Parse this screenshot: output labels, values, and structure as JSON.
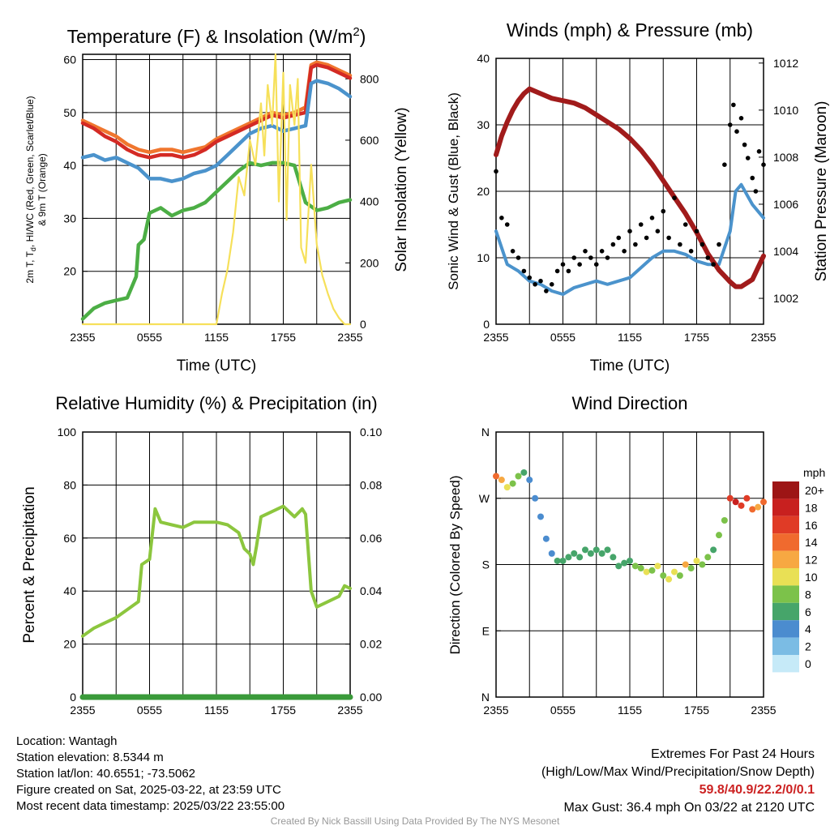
{
  "colors": {
    "red": "#d42a24",
    "orange": "#f0762e",
    "blue": "#4b93cc",
    "green": "#4cae45",
    "yellow": "#f6e05a",
    "black": "#000000",
    "maroon": "#a11b1b",
    "rh": "#8cc63e",
    "precip": "#3a9a3a"
  },
  "chart_data": [
    {
      "name": "temperature",
      "type": "line",
      "title_main": "Temperature (F) & Insolation (W/m",
      "title_sup": "2",
      "title_end": ")",
      "xlabel": "Time (UTC)",
      "ylabel_line1": "2m T, T",
      "ylabel_sub": "d",
      "ylabel_line1_end": ", HI/WC (Red, Green, Scarlet/Blue)",
      "ylabel_line2": "& 9m T (Orange)",
      "ylabel_right": "Solar Insolation (Yellow)",
      "x_ticks": [
        "2355",
        "0555",
        "1155",
        "1755",
        "2355"
      ],
      "x_range": [
        0,
        24
      ],
      "ylim": [
        10,
        61
      ],
      "y_ticks": [
        20,
        30,
        40,
        50,
        60
      ],
      "y2lim": [
        0,
        880
      ],
      "y2_ticks": [
        0,
        200,
        400,
        600,
        800
      ],
      "series": [
        {
          "key": "orange",
          "color_key": "orange",
          "x": [
            0,
            1,
            2,
            3,
            4,
            5,
            6,
            7,
            8,
            9,
            10,
            11,
            12,
            13,
            14,
            15,
            16,
            17,
            18,
            19,
            20,
            20.5,
            21,
            22,
            23,
            24
          ],
          "y": [
            48.5,
            47.5,
            46.5,
            45.5,
            44,
            43,
            42.5,
            43,
            43,
            42.5,
            43,
            43.5,
            45,
            46,
            47,
            48,
            49,
            50,
            49.5,
            50,
            51,
            59,
            59.5,
            59,
            58,
            57
          ]
        },
        {
          "key": "red",
          "color_key": "red",
          "x": [
            0,
            1,
            2,
            3,
            4,
            5,
            6,
            7,
            8,
            9,
            10,
            11,
            12,
            13,
            14,
            15,
            16,
            17,
            18,
            19,
            20,
            20.5,
            21,
            22,
            23,
            24
          ],
          "y": [
            48,
            47,
            45.5,
            44.5,
            43,
            42,
            41.5,
            42,
            42,
            41.5,
            42,
            43,
            44.5,
            45.5,
            46.5,
            47.5,
            48.5,
            49.5,
            49,
            49.5,
            50,
            58.5,
            59,
            58.5,
            57.5,
            56.5
          ]
        },
        {
          "key": "blue",
          "color_key": "blue",
          "x": [
            0,
            1,
            2,
            3,
            4,
            5,
            6,
            7,
            8,
            9,
            10,
            11,
            12,
            13,
            14,
            15,
            16,
            17,
            18,
            19,
            20,
            20.5,
            21,
            22,
            23,
            24
          ],
          "y": [
            41.5,
            42,
            41,
            41.5,
            40.5,
            39.5,
            37.5,
            37.5,
            37,
            37.5,
            38.5,
            39,
            40,
            42,
            44,
            46,
            47,
            47.5,
            46.5,
            47,
            47.5,
            55.5,
            56,
            55.5,
            54.5,
            53
          ]
        },
        {
          "key": "green",
          "color_key": "green",
          "x": [
            0,
            1,
            2,
            3,
            4,
            4.8,
            5,
            5.5,
            6,
            7,
            8,
            9,
            10,
            11,
            12,
            13,
            14,
            15,
            16,
            17,
            18,
            19,
            20,
            21,
            22,
            23,
            24
          ],
          "y": [
            11,
            13,
            14,
            14.5,
            15,
            19,
            25,
            26,
            31,
            32,
            30.5,
            31.5,
            32,
            33,
            35,
            37,
            39,
            40.5,
            40,
            40.5,
            40.5,
            40,
            33,
            31.5,
            32,
            33,
            33.5
          ]
        },
        {
          "key": "yellow",
          "color_key": "yellow",
          "axis": "y2",
          "x": [
            0,
            1,
            2,
            3,
            4,
            5,
            6,
            7,
            8,
            9,
            10,
            11,
            12,
            12.5,
            13,
            13.5,
            14,
            14.5,
            15,
            15.5,
            16,
            16.3,
            16.6,
            17,
            17.3,
            17.6,
            18,
            18.3,
            18.6,
            19,
            19.3,
            19.6,
            20,
            20.5,
            21,
            21.5,
            22,
            22.5,
            23,
            23.5,
            24
          ],
          "y": [
            0,
            0,
            0,
            0,
            0,
            0,
            0,
            0,
            0,
            0,
            0,
            0,
            0,
            100,
            180,
            300,
            480,
            420,
            600,
            520,
            720,
            550,
            780,
            650,
            880,
            400,
            820,
            340,
            780,
            650,
            800,
            250,
            200,
            520,
            260,
            160,
            100,
            50,
            20,
            0,
            0
          ]
        }
      ]
    },
    {
      "name": "winds",
      "type": "line",
      "title": "Winds (mph) & Pressure (mb)",
      "xlabel": "Time (UTC)",
      "ylabel": "Sonic Wind & Gust (Blue, Black)",
      "ylabel_right": "Station Pressure (Maroon)",
      "x_ticks": [
        "2355",
        "0555",
        "1155",
        "1755",
        "2355"
      ],
      "x_range": [
        0,
        24
      ],
      "ylim": [
        0,
        40
      ],
      "y_ticks": [
        0,
        10,
        20,
        30,
        40
      ],
      "y2lim": [
        1000.9,
        1012.2
      ],
      "y2_ticks": [
        1002,
        1004,
        1006,
        1008,
        1010,
        1012
      ],
      "wind": {
        "color_key": "blue",
        "x": [
          0,
          1,
          2,
          3,
          4,
          5,
          6,
          7,
          8,
          9,
          10,
          11,
          12,
          13,
          14,
          15,
          16,
          17,
          18,
          19,
          20,
          21,
          21.5,
          22,
          23,
          24
        ],
        "y": [
          14,
          9,
          8,
          6.5,
          6,
          5,
          4.5,
          5.5,
          6,
          6.5,
          6,
          6.5,
          7,
          8.5,
          10,
          11,
          11,
          10.5,
          9.5,
          9,
          9,
          14,
          20,
          21,
          18,
          16
        ]
      },
      "pressure": {
        "color_key": "maroon",
        "x": [
          0,
          0.5,
          1,
          1.5,
          2,
          2.5,
          3,
          4,
          5,
          6,
          7,
          8,
          9,
          10,
          11,
          12,
          13,
          14,
          15,
          16,
          17,
          18,
          19,
          20,
          21,
          21.5,
          22,
          23,
          24
        ],
        "y": [
          1008.1,
          1008.9,
          1009.5,
          1010,
          1010.4,
          1010.7,
          1010.9,
          1010.7,
          1010.5,
          1010.4,
          1010.3,
          1010.1,
          1009.8,
          1009.5,
          1009.2,
          1008.8,
          1008.3,
          1007.7,
          1007,
          1006.3,
          1005.6,
          1004.8,
          1003.9,
          1003.2,
          1002.7,
          1002.5,
          1002.5,
          1002.8,
          1003.8
        ]
      },
      "gusts": {
        "color_key": "black",
        "x": [
          0,
          0.5,
          1,
          1.5,
          2,
          2.5,
          3,
          3.5,
          4,
          4.5,
          5,
          5.5,
          6,
          6.5,
          7,
          7.5,
          8,
          8.5,
          9,
          9.5,
          10,
          10.5,
          11,
          11.5,
          12,
          12.5,
          13,
          13.5,
          14,
          14.5,
          15,
          15.5,
          16,
          16.5,
          17,
          17.5,
          18,
          18.5,
          19,
          19.5,
          20,
          20.5,
          21,
          21.3,
          21.6,
          22,
          22.3,
          22.6,
          23,
          23.3,
          23.6,
          24
        ],
        "y": [
          23,
          16,
          15,
          11,
          10,
          8,
          7,
          6,
          6.5,
          5,
          6,
          8,
          9,
          8,
          10,
          9,
          11,
          10,
          9,
          11,
          10,
          12,
          13,
          11,
          14,
          12,
          15,
          13,
          16,
          14,
          17,
          13,
          19,
          12,
          15,
          11,
          14,
          12,
          10,
          9,
          12,
          24,
          30,
          33,
          29,
          31,
          27,
          25,
          22,
          20,
          26,
          24
        ]
      }
    },
    {
      "name": "humidity",
      "type": "line",
      "title": "Relative Humidity (%) & Precipitation (in)",
      "ylabel": "Percent & Precipitation",
      "x_ticks": [
        "2355",
        "0555",
        "1155",
        "1755",
        "2355"
      ],
      "x_range": [
        0,
        24
      ],
      "ylim": [
        0,
        100
      ],
      "y_ticks": [
        0,
        20,
        40,
        60,
        80,
        100
      ],
      "y2lim": [
        0,
        0.1
      ],
      "y2_ticks": [
        "0.00",
        "0.02",
        "0.04",
        "0.06",
        "0.08",
        "0.10"
      ],
      "rh": {
        "color_key": "rh",
        "x": [
          0,
          1,
          2,
          3,
          4,
          5,
          5.3,
          6,
          6.5,
          7,
          8,
          9,
          10,
          11,
          12,
          13,
          14,
          14.5,
          15,
          15.3,
          15.6,
          16,
          17,
          18,
          19,
          19.7,
          20,
          20.5,
          21,
          22,
          23,
          23.5,
          24
        ],
        "y": [
          23,
          26,
          28,
          30,
          33,
          36,
          50,
          52,
          71,
          66,
          65,
          64,
          66,
          66,
          66,
          65,
          62,
          56,
          54,
          50,
          57,
          68,
          70,
          72,
          68,
          71,
          69,
          40,
          34,
          36,
          38,
          42,
          41
        ]
      },
      "precip": {
        "color_key": "precip",
        "x": [
          0,
          24
        ],
        "y": [
          0,
          0
        ]
      }
    },
    {
      "name": "direction",
      "type": "scatter",
      "title": "Wind Direction",
      "ylabel": "Direction (Colored By Speed)",
      "x_ticks": [
        "2355",
        "0555",
        "1155",
        "1755",
        "2355"
      ],
      "x_range": [
        0,
        24
      ],
      "y_ticks": [
        "N",
        "E",
        "S",
        "W",
        "N"
      ],
      "ylim": [
        0,
        360
      ],
      "legend_unit": "mph",
      "legend_labels": [
        "0",
        "2",
        "4",
        "6",
        "8",
        "10",
        "12",
        "14",
        "16",
        "18",
        "20+"
      ],
      "legend_colors": [
        "#c6eaf8",
        "#7bbce4",
        "#4b8ccf",
        "#46a56a",
        "#7cc24a",
        "#e9e055",
        "#f7a842",
        "#f06a2e",
        "#e03b26",
        "#c8201f",
        "#9d1515"
      ],
      "x": [
        0,
        0.5,
        1,
        1.5,
        2,
        2.5,
        3,
        3.5,
        4,
        4.5,
        5,
        5.5,
        6,
        6.5,
        7,
        7.5,
        8,
        8.5,
        9,
        9.5,
        10,
        10.5,
        11,
        11.5,
        12,
        12.5,
        13,
        13.5,
        14,
        14.5,
        15,
        15.5,
        16,
        16.5,
        17,
        17.5,
        18,
        18.5,
        19,
        19.5,
        20,
        20.5,
        21,
        21.5,
        22,
        22.5,
        23,
        23.5,
        24
      ],
      "y": [
        300,
        295,
        285,
        290,
        300,
        305,
        295,
        270,
        245,
        215,
        195,
        185,
        185,
        190,
        195,
        190,
        200,
        195,
        200,
        195,
        200,
        190,
        178,
        182,
        185,
        178,
        175,
        170,
        172,
        178,
        165,
        160,
        170,
        165,
        180,
        175,
        185,
        180,
        190,
        200,
        220,
        240,
        270,
        265,
        260,
        270,
        255,
        258,
        265
      ],
      "speeds": [
        14,
        12,
        10,
        9,
        9,
        7,
        5,
        4,
        4,
        4,
        5,
        6,
        6,
        6,
        7,
        6,
        7,
        6,
        7,
        6,
        6,
        7,
        7,
        6,
        7,
        8,
        9,
        10,
        8,
        11,
        9,
        10,
        11,
        9,
        12,
        8,
        11,
        9,
        8,
        7,
        8,
        9,
        16,
        18,
        17,
        17,
        14,
        13,
        15
      ]
    }
  ],
  "info": {
    "location": "Location: Wantagh",
    "elevation": "Station elevation: 8.5344 m",
    "latlon": "Station lat/lon: 40.6551; -73.5062",
    "created": "Figure created on Sat, 2025-03-22, at 23:59 UTC",
    "recent": "Most recent data timestamp: 2025/03/22 23:55:00"
  },
  "extremes": {
    "title": "Extremes For Past 24 Hours",
    "subtitle": "(High/Low/Max Wind/Precipitation/Snow Depth)",
    "values": "59.8/40.9/22.2/0/0.1",
    "gust": "Max Gust: 36.4 mph On 03/22 at 2120 UTC"
  },
  "credit": "Created By Nick Bassill Using Data Provided By The NYS Mesonet"
}
